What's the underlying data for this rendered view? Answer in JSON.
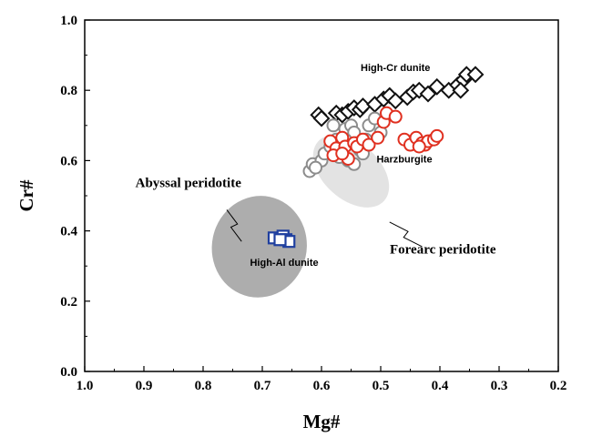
{
  "chart_data": {
    "type": "scatter",
    "title": "",
    "xlabel": "Mg#",
    "ylabel": "Cr#",
    "xlim": [
      1.0,
      0.2
    ],
    "ylim": [
      0.0,
      1.0
    ],
    "x_reversed": true,
    "grid": false,
    "x_ticks": [
      "1.0",
      "0.9",
      "0.8",
      "0.7",
      "0.6",
      "0.5",
      "0.4",
      "0.3",
      "0.2"
    ],
    "y_ticks": [
      "0.0",
      "0.2",
      "0.4",
      "0.6",
      "0.8",
      "1.0"
    ],
    "fields": [
      {
        "label": "Abyssal peridotite",
        "color": "#a9a9a9",
        "center": [
          0.705,
          0.355
        ],
        "semi_axes": [
          0.08,
          0.145
        ],
        "tilt_deg": 12
      },
      {
        "label": "Forearc peridotite",
        "color": "#dcdcdc",
        "center": [
          0.55,
          0.57
        ],
        "semi_axes": [
          0.075,
          0.08
        ],
        "tilt_deg": 42
      }
    ],
    "field_labels": [
      {
        "text": "Abyssal peridotite",
        "x": 0.825,
        "y": 0.525
      },
      {
        "text": "Forearc peridotite",
        "x": 0.395,
        "y": 0.335
      }
    ],
    "series_labels": [
      {
        "text": "High-Cr dunite",
        "x": 0.475,
        "y": 0.855
      },
      {
        "text": "Harzburgite",
        "x": 0.46,
        "y": 0.595
      },
      {
        "text": "High-Al dunite",
        "x": 0.663,
        "y": 0.3
      }
    ],
    "series": [
      {
        "name": "High-Cr dunite",
        "marker": "diamond",
        "color": "#111111",
        "points": [
          [
            0.605,
            0.73
          ],
          [
            0.6,
            0.72
          ],
          [
            0.575,
            0.735
          ],
          [
            0.565,
            0.73
          ],
          [
            0.555,
            0.74
          ],
          [
            0.545,
            0.75
          ],
          [
            0.535,
            0.745
          ],
          [
            0.53,
            0.755
          ],
          [
            0.51,
            0.76
          ],
          [
            0.495,
            0.775
          ],
          [
            0.485,
            0.785
          ],
          [
            0.475,
            0.77
          ],
          [
            0.455,
            0.78
          ],
          [
            0.445,
            0.795
          ],
          [
            0.435,
            0.8
          ],
          [
            0.42,
            0.79
          ],
          [
            0.405,
            0.81
          ],
          [
            0.385,
            0.8
          ],
          [
            0.37,
            0.815
          ],
          [
            0.36,
            0.83
          ],
          [
            0.355,
            0.845
          ],
          [
            0.34,
            0.845
          ],
          [
            0.365,
            0.8
          ]
        ]
      },
      {
        "name": "Harzburgite (grey)",
        "marker": "circle",
        "color": "#8c8c8c",
        "points": [
          [
            0.62,
            0.57
          ],
          [
            0.615,
            0.59
          ],
          [
            0.6,
            0.6
          ],
          [
            0.595,
            0.62
          ],
          [
            0.585,
            0.64
          ],
          [
            0.575,
            0.66
          ],
          [
            0.56,
            0.69
          ],
          [
            0.55,
            0.7
          ],
          [
            0.545,
            0.68
          ],
          [
            0.54,
            0.65
          ],
          [
            0.535,
            0.63
          ],
          [
            0.555,
            0.6
          ],
          [
            0.57,
            0.61
          ],
          [
            0.58,
            0.7
          ],
          [
            0.525,
            0.66
          ],
          [
            0.52,
            0.7
          ],
          [
            0.51,
            0.72
          ],
          [
            0.5,
            0.68
          ],
          [
            0.56,
            0.66
          ],
          [
            0.545,
            0.59
          ],
          [
            0.53,
            0.62
          ],
          [
            0.61,
            0.58
          ]
        ]
      },
      {
        "name": "Harzburgite (red)",
        "marker": "circle",
        "color": "#e03020",
        "points": [
          [
            0.585,
            0.655
          ],
          [
            0.575,
            0.635
          ],
          [
            0.565,
            0.665
          ],
          [
            0.56,
            0.64
          ],
          [
            0.555,
            0.605
          ],
          [
            0.545,
            0.65
          ],
          [
            0.54,
            0.64
          ],
          [
            0.53,
            0.66
          ],
          [
            0.52,
            0.645
          ],
          [
            0.505,
            0.665
          ],
          [
            0.495,
            0.71
          ],
          [
            0.49,
            0.735
          ],
          [
            0.475,
            0.725
          ],
          [
            0.46,
            0.66
          ],
          [
            0.45,
            0.645
          ],
          [
            0.44,
            0.665
          ],
          [
            0.43,
            0.65
          ],
          [
            0.425,
            0.645
          ],
          [
            0.42,
            0.655
          ],
          [
            0.41,
            0.66
          ],
          [
            0.405,
            0.67
          ],
          [
            0.435,
            0.64
          ],
          [
            0.58,
            0.615
          ],
          [
            0.565,
            0.62
          ]
        ]
      },
      {
        "name": "High-Al dunite",
        "marker": "square",
        "color": "#1f3f9f",
        "points": [
          [
            0.68,
            0.38
          ],
          [
            0.665,
            0.385
          ],
          [
            0.66,
            0.375
          ],
          [
            0.655,
            0.37
          ],
          [
            0.67,
            0.375
          ]
        ]
      }
    ]
  }
}
